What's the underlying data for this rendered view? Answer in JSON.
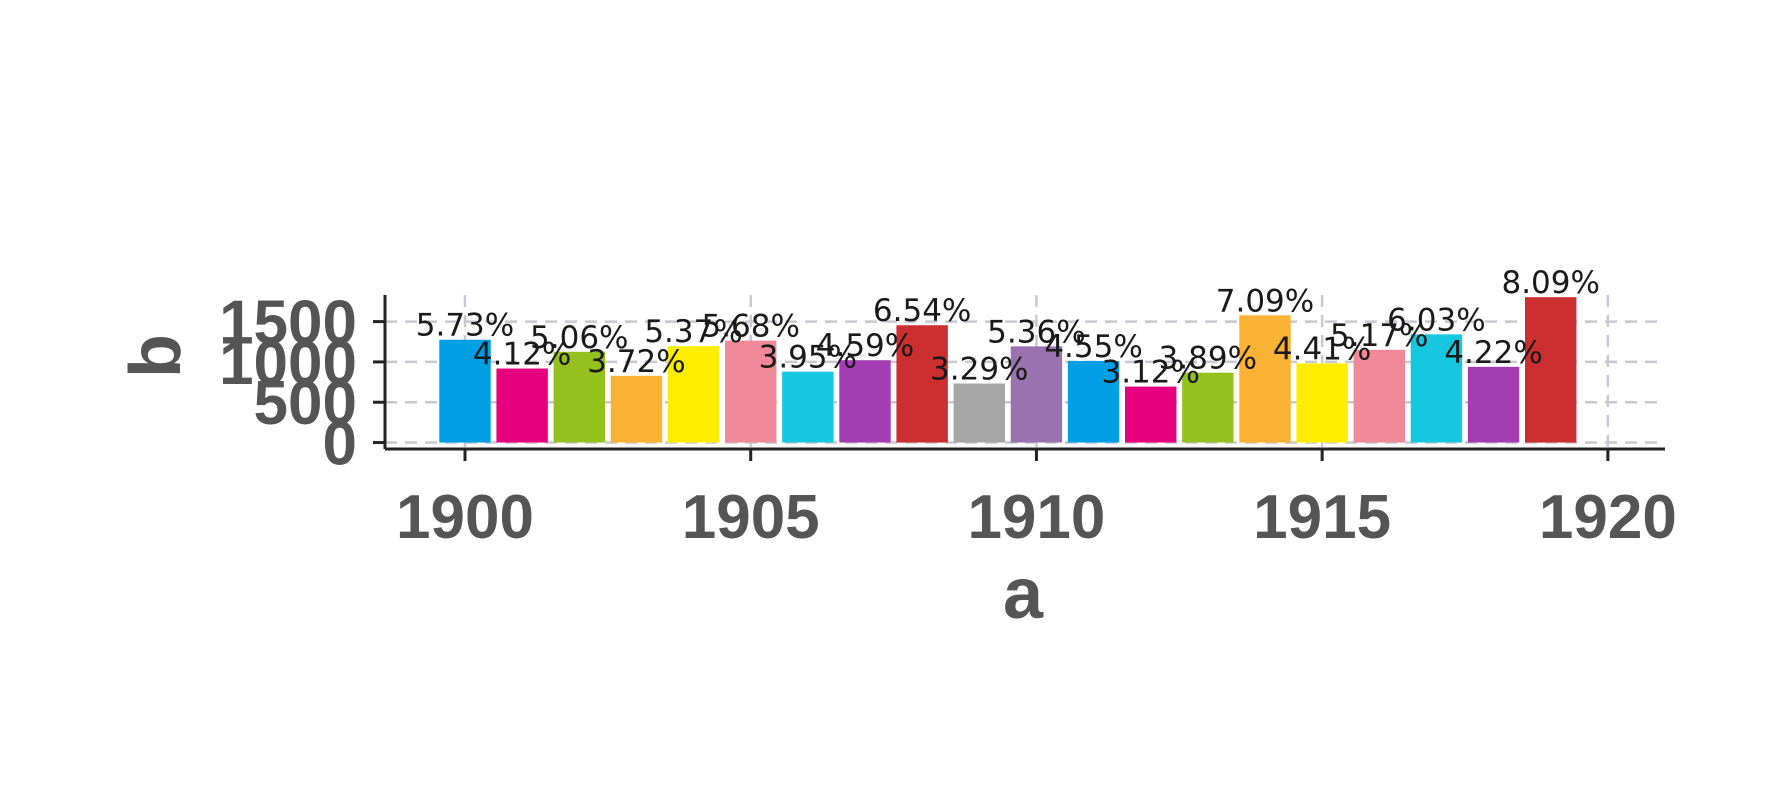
{
  "chart_data": {
    "type": "bar",
    "xlabel": "a",
    "ylabel": "b",
    "xlim": [
      1898.6,
      1921.0
    ],
    "ylim": [
      -80,
      1830
    ],
    "x_ticks": [
      1900,
      1905,
      1910,
      1915,
      1920
    ],
    "x_tick_labels": [
      "1900",
      "1905",
      "1910",
      "1915",
      "1920"
    ],
    "y_ticks": [
      0,
      500,
      1000,
      1500
    ],
    "y_tick_labels": [
      "0",
      "500",
      "1000",
      "1500"
    ],
    "grid": true,
    "legend": "none",
    "colors": [
      "#009fe3",
      "#e6007e",
      "#95c11f",
      "#f9b233",
      "#ffed00",
      "#f08a98",
      "#17c6e0",
      "#a43cb4",
      "#cc2f2f",
      "#a6a6a6",
      "#9b72b0"
    ],
    "x": [
      1900,
      1901,
      1902,
      1903,
      1904,
      1905,
      1906,
      1907,
      1908,
      1909,
      1910,
      1911,
      1912,
      1913,
      1914,
      1915,
      1916,
      1917,
      1918,
      1919
    ],
    "values": [
      1275,
      918,
      1126,
      828,
      1195,
      1264,
      879,
      1021,
      1455,
      732,
      1193,
      1012,
      694,
      866,
      1578,
      981,
      1150,
      1342,
      939,
      1803
    ],
    "labels": [
      "5.73%",
      "4.12%",
      "5.06%",
      "3.72%",
      "5.37%",
      "5.68%",
      "3.95%",
      "4.59%",
      "6.54%",
      "3.29%",
      "5.36%",
      "4.55%",
      "3.12%",
      "3.89%",
      "7.09%",
      "4.41%",
      "5.17%",
      "6.03%",
      "4.22%",
      "8.09%"
    ]
  }
}
